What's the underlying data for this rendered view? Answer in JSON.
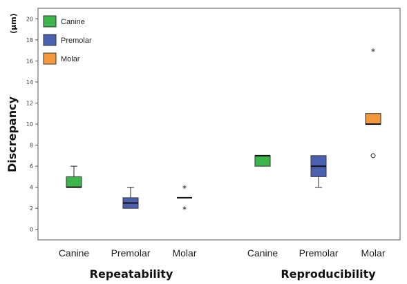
{
  "chart_data": {
    "type": "box",
    "ylabel": "Discrepancy",
    "unit": "(μm)",
    "ylim": [
      -1,
      21
    ],
    "yticks": [
      "0",
      "2",
      "4",
      "6",
      "8",
      "10",
      "12",
      "14",
      "16",
      "18",
      "20"
    ],
    "legend": {
      "position": "top-left",
      "entries": [
        {
          "name": "Canine",
          "color": "#3cb54a"
        },
        {
          "name": "Premolar",
          "color": "#4a61b0"
        },
        {
          "name": "Molar",
          "color": "#f49a3c"
        }
      ]
    },
    "groups": [
      {
        "label": "Repeatability",
        "boxes": [
          {
            "category": "Canine",
            "color": "#3cb54a",
            "min": 4,
            "q1": 4,
            "median": 4,
            "q3": 5,
            "max": 6,
            "outliers": []
          },
          {
            "category": "Premolar",
            "color": "#4a61b0",
            "min": 2,
            "q1": 2,
            "median": 2.5,
            "q3": 3,
            "max": 4,
            "outliers": []
          },
          {
            "category": "Molar",
            "color": "#f49a3c",
            "min": 3,
            "q1": 3,
            "median": 3,
            "q3": 3,
            "max": 3,
            "outliers": [
              {
                "value": 4,
                "marker": "*"
              },
              {
                "value": 2,
                "marker": "*"
              }
            ]
          }
        ]
      },
      {
        "label": "Reproducibility",
        "boxes": [
          {
            "category": "Canine",
            "color": "#3cb54a",
            "min": 6,
            "q1": 6,
            "median": 7,
            "q3": 7,
            "max": 7,
            "outliers": []
          },
          {
            "category": "Premolar",
            "color": "#4a61b0",
            "min": 4,
            "q1": 5,
            "median": 6,
            "q3": 7,
            "max": 7,
            "outliers": []
          },
          {
            "category": "Molar",
            "color": "#f49a3c",
            "min": 10,
            "q1": 10,
            "median": 10,
            "q3": 11,
            "max": 11,
            "outliers": [
              {
                "value": 17,
                "marker": "*"
              },
              {
                "value": 7,
                "marker": "o"
              }
            ]
          }
        ]
      }
    ]
  }
}
